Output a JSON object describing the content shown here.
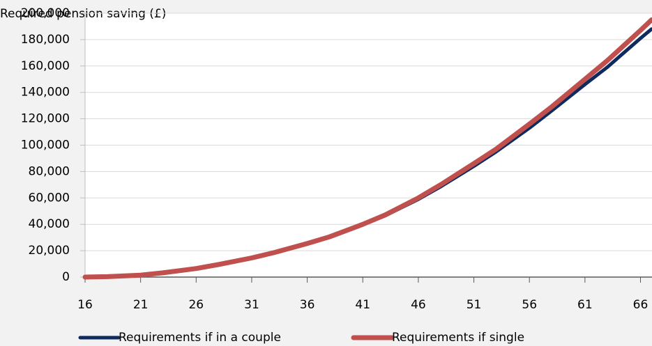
{
  "chart_data": {
    "type": "line",
    "y_label": "Required pension saving (£)",
    "x": [
      16,
      18,
      21,
      23,
      26,
      28,
      31,
      33,
      36,
      38,
      41,
      43,
      46,
      48,
      51,
      53,
      56,
      58,
      61,
      63,
      66,
      67
    ],
    "series": [
      {
        "name": "Requirements if in a couple",
        "color": "#0d2b5e",
        "values": [
          0,
          300,
          1500,
          3200,
          6500,
          9500,
          14500,
          18500,
          25500,
          30500,
          40000,
          46500,
          59000,
          68500,
          84000,
          95000,
          113000,
          126000,
          146000,
          159000,
          181000,
          188000
        ]
      },
      {
        "name": "Requirements if single",
        "color": "#c0504d",
        "values": [
          0,
          300,
          1500,
          3200,
          6500,
          9500,
          14500,
          18500,
          25500,
          30500,
          40000,
          47000,
          60000,
          70000,
          86000,
          97000,
          116000,
          129000,
          150000,
          164000,
          187000,
          195000
        ]
      }
    ],
    "xlim": [
      16,
      67
    ],
    "xticks": [
      16,
      21,
      26,
      31,
      36,
      41,
      46,
      51,
      56,
      61,
      66
    ],
    "ylim": [
      0,
      200000
    ],
    "yticks": [
      0,
      {
        "value": 20000,
        "label": "20,000"
      },
      {
        "value": 40000,
        "label": "40,000"
      },
      {
        "value": 60000,
        "label": "60,000"
      },
      {
        "value": 80000,
        "label": "80,000"
      },
      {
        "value": 100000,
        "label": "100,000"
      },
      {
        "value": 120000,
        "label": "120,000"
      },
      {
        "value": 140000,
        "label": "140,000"
      },
      {
        "value": 160000,
        "label": "160,000"
      },
      {
        "value": 180000,
        "label": "180,000"
      },
      {
        "value": 200000,
        "label": "200,000"
      }
    ],
    "grid": true
  }
}
